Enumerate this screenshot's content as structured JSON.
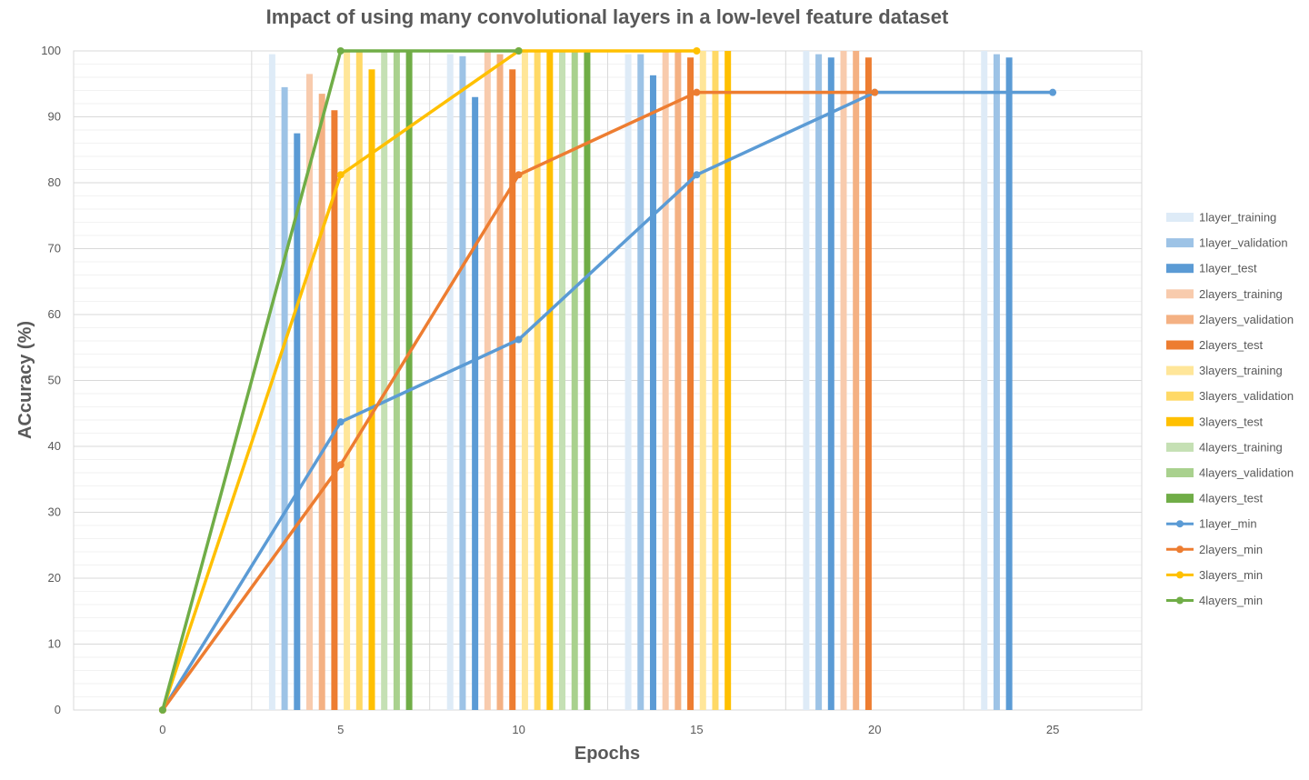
{
  "chart_data": {
    "type": "bar",
    "title": "Impact of using many convolutional layers in a low-level feature dataset",
    "xlabel": "Epochs",
    "ylabel": "ACcuracy (%)",
    "xlim": [
      -2.5,
      27.5
    ],
    "ylim": [
      0,
      100
    ],
    "x_ticks": [
      0,
      5,
      10,
      15,
      20,
      25
    ],
    "y_ticks": [
      0,
      10,
      20,
      30,
      40,
      50,
      60,
      70,
      80,
      90,
      100
    ],
    "grid": true,
    "legend_position": "right",
    "bar_groups": [
      5,
      10,
      15,
      20,
      25
    ],
    "bar_series": [
      {
        "name": "1layer_training",
        "color": "#DEEBF7",
        "values": [
          99.5,
          99.5,
          99.5,
          100,
          100
        ]
      },
      {
        "name": "1layer_validation",
        "color": "#9DC3E6",
        "values": [
          94.5,
          99.2,
          99.5,
          99.5,
          99.5
        ]
      },
      {
        "name": "1layer_test",
        "color": "#5B9BD5",
        "values": [
          87.5,
          93,
          96.3,
          99,
          99
        ]
      },
      {
        "name": "2layers_training",
        "color": "#F8CBAD",
        "values": [
          96.5,
          100,
          100,
          100,
          null
        ]
      },
      {
        "name": "2layers_validation",
        "color": "#F4B183",
        "values": [
          93.5,
          99.5,
          100,
          100,
          null
        ]
      },
      {
        "name": "2layers_test",
        "color": "#ED7D31",
        "values": [
          91,
          97.2,
          99,
          99,
          null
        ]
      },
      {
        "name": "3layers_training",
        "color": "#FFE699",
        "values": [
          100,
          100,
          100,
          null,
          null
        ]
      },
      {
        "name": "3layers_validation",
        "color": "#FFD966",
        "values": [
          100,
          100,
          100,
          null,
          null
        ]
      },
      {
        "name": "3layers_test",
        "color": "#FFC000",
        "values": [
          97.2,
          100,
          100,
          null,
          null
        ]
      },
      {
        "name": "4layers_training",
        "color": "#C5E0B4",
        "values": [
          100,
          100,
          null,
          null,
          null
        ]
      },
      {
        "name": "4layers_validation",
        "color": "#A9D18E",
        "values": [
          100,
          100,
          null,
          null,
          null
        ]
      },
      {
        "name": "4layers_test",
        "color": "#70AD47",
        "values": [
          100,
          100,
          null,
          null,
          null
        ]
      }
    ],
    "line_series": [
      {
        "name": "1layer_min",
        "color": "#5B9BD5",
        "x": [
          0,
          5,
          10,
          15,
          20,
          25
        ],
        "y": [
          0,
          43.7,
          56.2,
          81.2,
          93.7,
          93.7
        ]
      },
      {
        "name": "2layers_min",
        "color": "#ED7D31",
        "x": [
          0,
          5,
          10,
          15,
          20
        ],
        "y": [
          0,
          37.2,
          81.2,
          93.7,
          93.7
        ]
      },
      {
        "name": "3layers_min",
        "color": "#FFC000",
        "x": [
          0,
          5,
          10,
          15
        ],
        "y": [
          0,
          81.2,
          100,
          100
        ]
      },
      {
        "name": "4layers_min",
        "color": "#70AD47",
        "x": [
          0,
          5,
          10
        ],
        "y": [
          0,
          100,
          100
        ]
      }
    ]
  }
}
